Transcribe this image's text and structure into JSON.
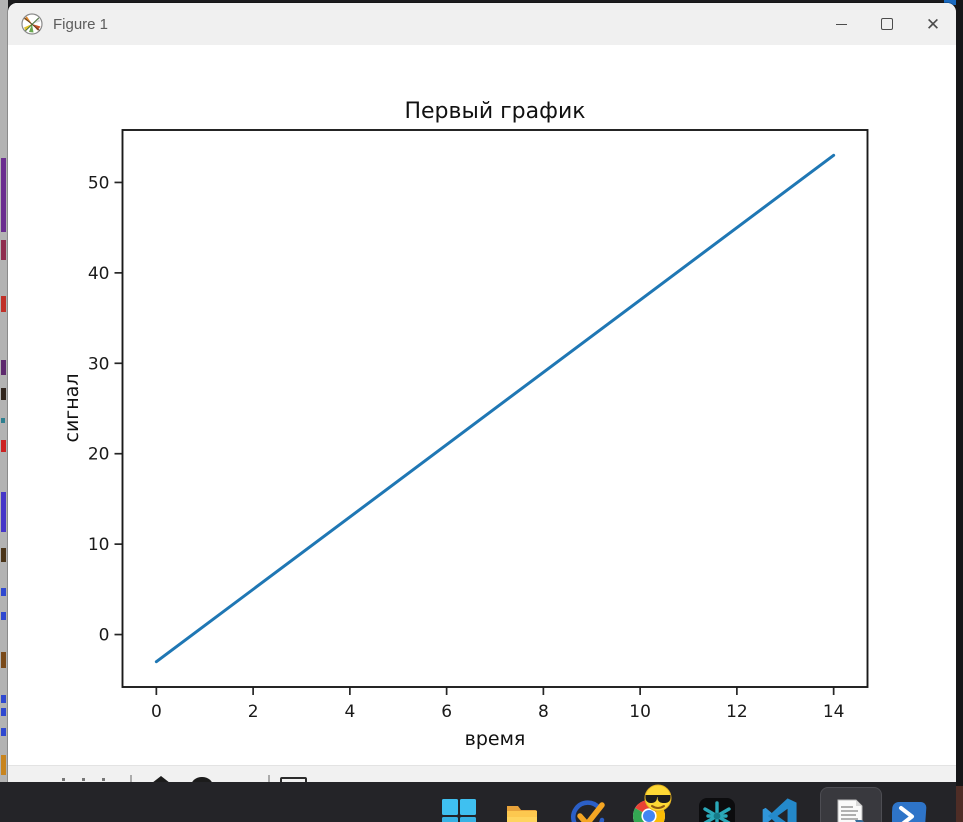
{
  "window": {
    "title": "Figure 1",
    "titlebar_bg": "#f0f0f0",
    "controls": [
      {
        "name": "minimize"
      },
      {
        "name": "maximize"
      },
      {
        "name": "close"
      }
    ]
  },
  "chart_data": {
    "type": "line",
    "title": "Первый график",
    "xlabel": "время",
    "ylabel": "сигнал",
    "x": [
      0,
      14
    ],
    "y": [
      -3,
      53
    ],
    "series": [
      {
        "name": "signal",
        "relation": "y = 4x - 3",
        "color": "#1f77b4"
      }
    ],
    "xticks": [
      0,
      2,
      4,
      6,
      8,
      10,
      12,
      14
    ],
    "yticks": [
      0,
      10,
      20,
      30,
      40,
      50
    ],
    "xlim": [
      -0.7,
      14.7
    ],
    "ylim": [
      -5.8,
      55.8
    ],
    "line_color": "#1f77b4",
    "grid": false,
    "legend": "none",
    "markers": "none"
  },
  "mpl_toolbar": {
    "note_icons_partially_visible": [
      "pan-icon-top",
      "zoom-icon-top",
      "save-icon-top"
    ]
  },
  "taskbar": {
    "bg": "#242428",
    "items": [
      {
        "icon": "windows-start"
      },
      {
        "icon": "file-explorer"
      },
      {
        "icon": "check-app"
      },
      {
        "icon": "chrome-with-cool-emoji"
      },
      {
        "icon": "starburst-app"
      },
      {
        "icon": "vscode"
      },
      {
        "icon": "python-file",
        "active": true
      },
      {
        "icon": "powershell"
      }
    ]
  }
}
